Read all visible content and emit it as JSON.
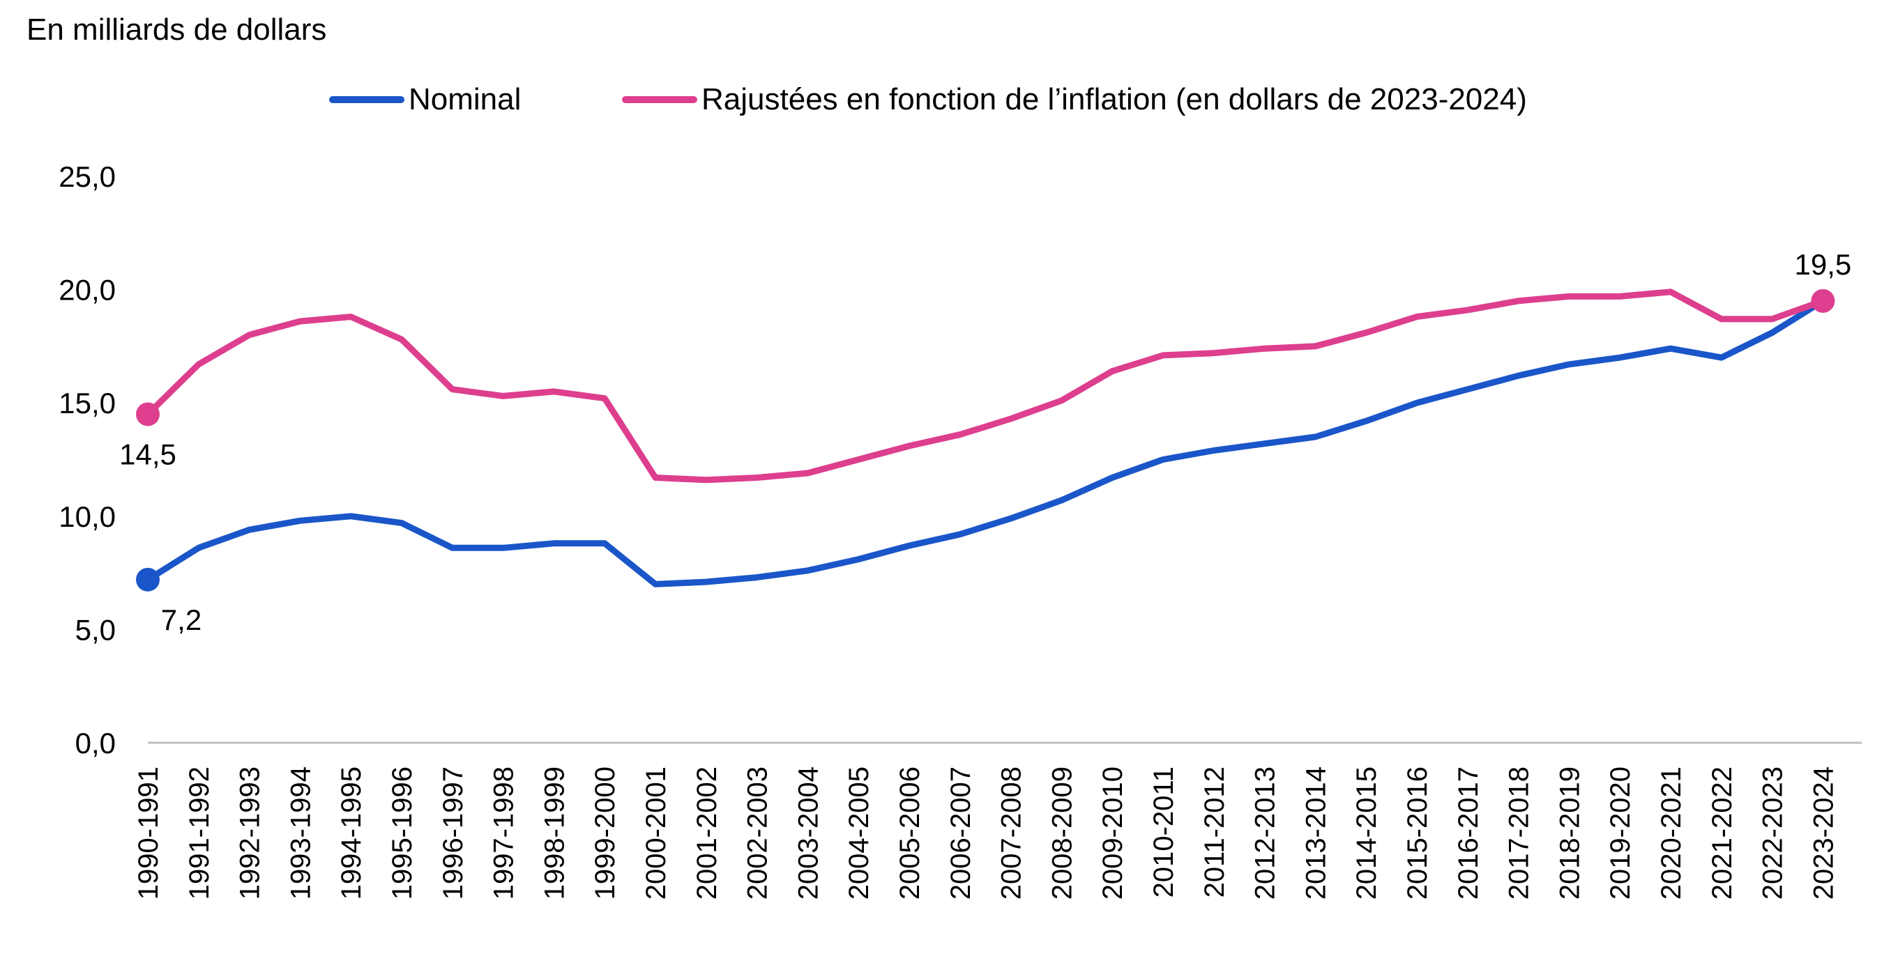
{
  "colors": {
    "nominal": "#1a56c9",
    "real": "#dd3f8e",
    "axis": "#bfbfbf"
  },
  "chart_data": {
    "type": "line",
    "title": "",
    "ylabel": "En milliards de dollars",
    "xlabel": "",
    "ylim": [
      0,
      25
    ],
    "yticks": [
      "0,0",
      "5,0",
      "10,0",
      "15,0",
      "20,0",
      "25,0"
    ],
    "ytick_values": [
      0,
      5,
      10,
      15,
      20,
      25
    ],
    "grid": false,
    "legend_position": "top",
    "categories": [
      "1990-1991",
      "1991-1992",
      "1992-1993",
      "1993-1994",
      "1994-1995",
      "1995-1996",
      "1996-1997",
      "1997-1998",
      "1998-1999",
      "1999-2000",
      "2000-2001",
      "2001-2002",
      "2002-2003",
      "2003-2004",
      "2004-2005",
      "2005-2006",
      "2006-2007",
      "2007-2008",
      "2008-2009",
      "2009-2010",
      "2010-2011",
      "2011-2012",
      "2012-2013",
      "2013-2014",
      "2014-2015",
      "2015-2016",
      "2016-2017",
      "2017-2018",
      "2018-2019",
      "2019-2020",
      "2020-2021",
      "2021-2022",
      "2022-2023",
      "2023-2024"
    ],
    "series": [
      {
        "name": "Nominal",
        "key": "nominal",
        "values": [
          7.2,
          8.6,
          9.4,
          9.8,
          10.0,
          9.7,
          8.6,
          8.6,
          8.8,
          8.8,
          7.0,
          7.1,
          7.3,
          7.6,
          8.1,
          8.7,
          9.2,
          9.9,
          10.7,
          11.7,
          12.5,
          12.9,
          13.2,
          13.5,
          14.2,
          15.0,
          15.6,
          16.2,
          16.7,
          17.0,
          17.4,
          17.0,
          18.1,
          19.5
        ],
        "labels": [
          {
            "index": 0,
            "text": "7,2",
            "position": "below"
          }
        ]
      },
      {
        "name": "Rajustées en fonction de l’inflation (en dollars de 2023-2024)",
        "key": "real",
        "values": [
          14.5,
          16.7,
          18.0,
          18.6,
          18.8,
          17.8,
          15.6,
          15.3,
          15.5,
          15.2,
          11.7,
          11.6,
          11.7,
          11.9,
          12.5,
          13.1,
          13.6,
          14.3,
          15.1,
          16.4,
          17.1,
          17.2,
          17.4,
          17.5,
          18.1,
          18.8,
          19.1,
          19.5,
          19.7,
          19.7,
          19.9,
          18.7,
          18.7,
          19.5
        ],
        "labels": [
          {
            "index": 0,
            "text": "14,5",
            "position": "below"
          },
          {
            "index": 33,
            "text": "19,5",
            "position": "above"
          }
        ]
      }
    ]
  }
}
